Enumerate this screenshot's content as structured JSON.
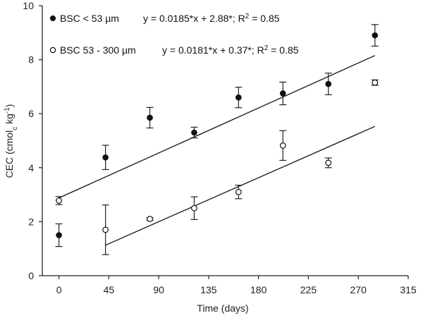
{
  "chart_data": {
    "type": "scatter",
    "xlabel": "Time (days)",
    "ylabel": "CEC (cmol",
    "ylabel_sub": "c",
    "ylabel_unit": " kg",
    "ylabel_sup": "-1",
    "ylabel_close": ")",
    "xlim": [
      -15,
      315
    ],
    "ylim": [
      0,
      10
    ],
    "xticks": [
      0,
      45,
      90,
      135,
      180,
      225,
      270,
      315
    ],
    "yticks": [
      0,
      2,
      4,
      6,
      8,
      10
    ],
    "legend_position": "top-left",
    "series": [
      {
        "name": "BSC < 53 µm",
        "equation": "y = 0.0185*x + 2.88*; R",
        "equation_sup": "2",
        "equation_tail": " = 0.85",
        "marker": "filled",
        "fit": {
          "slope": 0.0185,
          "intercept": 2.88,
          "x_start": 0,
          "x_end": 285
        },
        "points": [
          {
            "x": 0,
            "y": 1.5,
            "err": 0.42
          },
          {
            "x": 42,
            "y": 4.38,
            "err": 0.45
          },
          {
            "x": 82,
            "y": 5.85,
            "err": 0.38
          },
          {
            "x": 122,
            "y": 5.3,
            "err": 0.2
          },
          {
            "x": 162,
            "y": 6.6,
            "err": 0.38
          },
          {
            "x": 202,
            "y": 6.75,
            "err": 0.42
          },
          {
            "x": 243,
            "y": 7.1,
            "err": 0.4
          },
          {
            "x": 285,
            "y": 8.9,
            "err": 0.4
          }
        ]
      },
      {
        "name": "BSC 53 - 300 µm",
        "equation": "y = 0.0181*x + 0.37*; R",
        "equation_sup": "2",
        "equation_tail": " = 0.85",
        "marker": "open",
        "fit": {
          "slope": 0.0181,
          "intercept": 0.37,
          "x_start": 42,
          "x_end": 285
        },
        "points": [
          {
            "x": 0,
            "y": 2.78,
            "err": 0.15
          },
          {
            "x": 42,
            "y": 1.7,
            "err": 0.92
          },
          {
            "x": 82,
            "y": 2.1,
            "err": 0.05
          },
          {
            "x": 122,
            "y": 2.5,
            "err": 0.42
          },
          {
            "x": 162,
            "y": 3.1,
            "err": 0.25
          },
          {
            "x": 202,
            "y": 4.82,
            "err": 0.55
          },
          {
            "x": 243,
            "y": 4.18,
            "err": 0.18
          },
          {
            "x": 285,
            "y": 7.15,
            "err": 0.1
          }
        ]
      }
    ]
  }
}
